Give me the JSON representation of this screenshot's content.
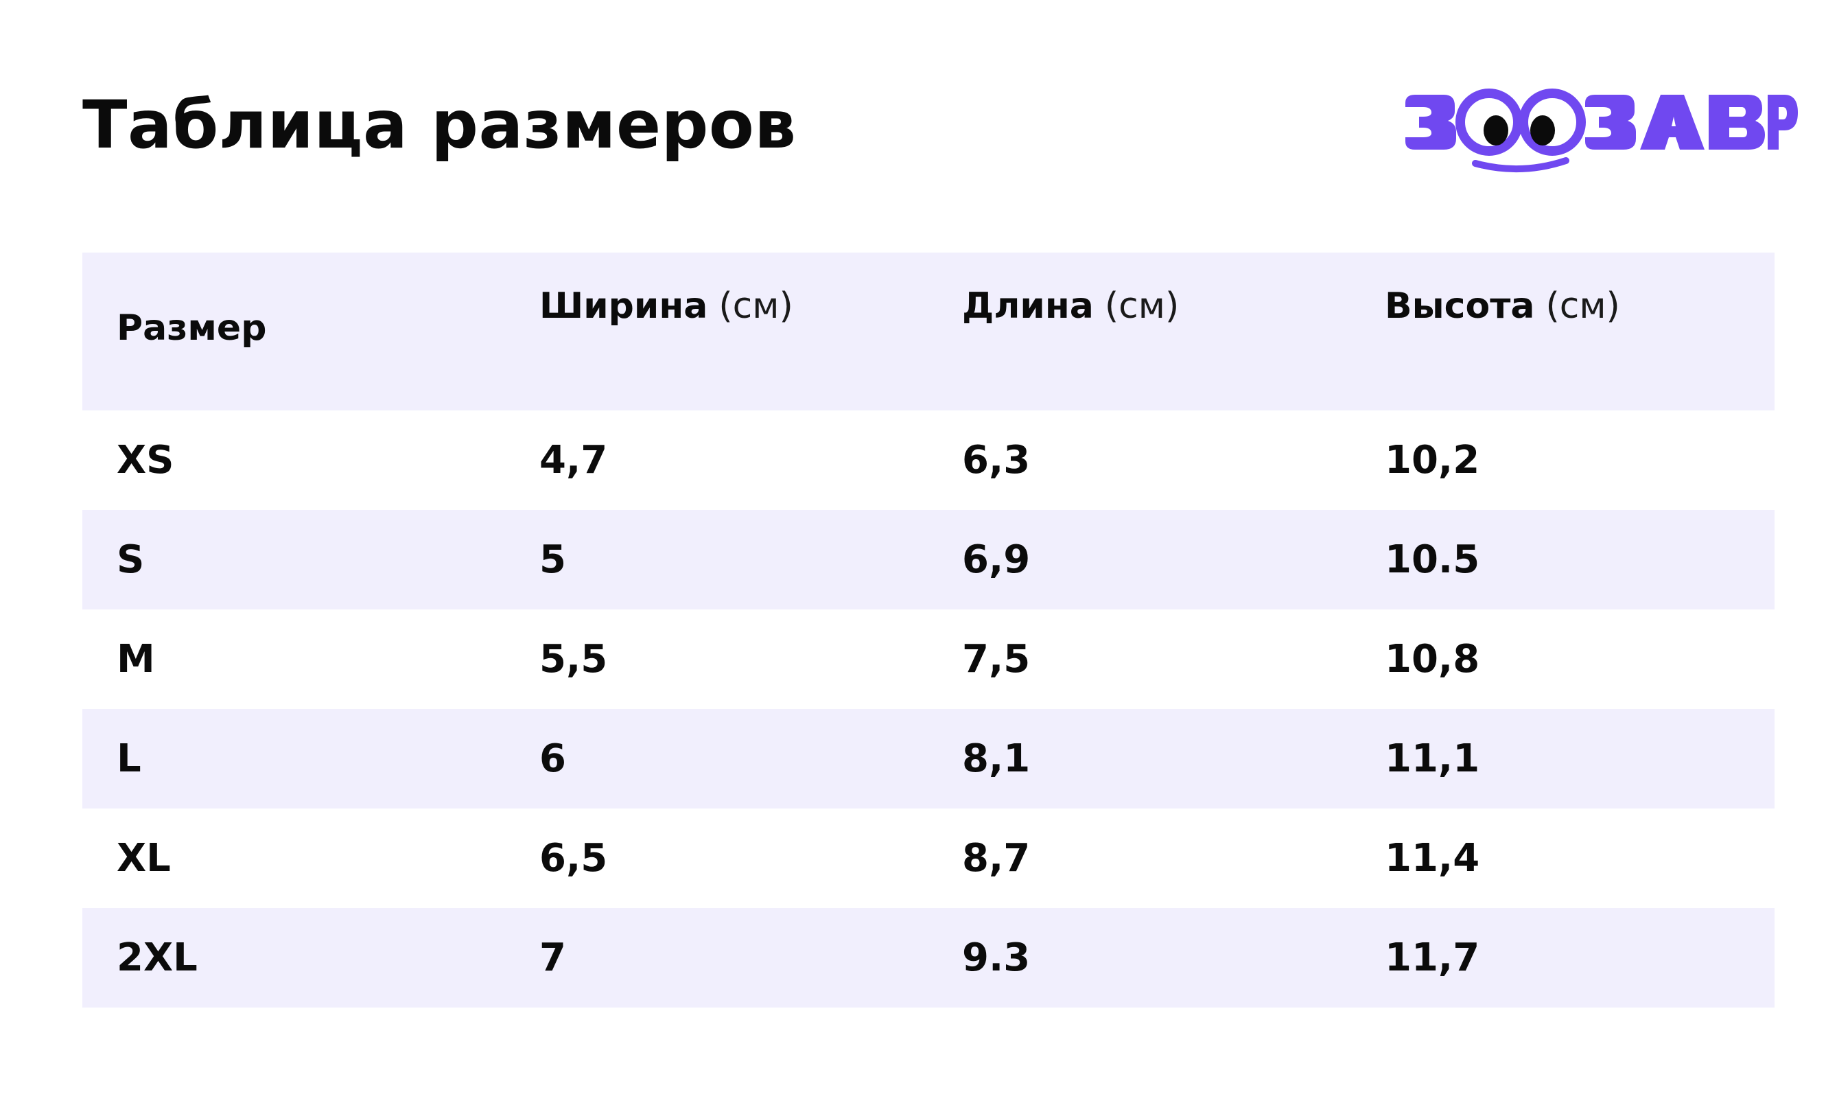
{
  "title": "Таблица размеров",
  "logo": {
    "text": "ЗООЗАВР",
    "color": "#7048f0"
  },
  "table": {
    "header_bg": "#f1effd",
    "columns": [
      {
        "label": "Размер",
        "unit": ""
      },
      {
        "label": "Ширина",
        "unit": "(см)"
      },
      {
        "label": "Длина",
        "unit": "(см)"
      },
      {
        "label": "Высота",
        "unit": "(см)"
      }
    ],
    "rows": [
      [
        "XS",
        "4,7",
        "6,3",
        "10,2"
      ],
      [
        "S",
        "5",
        "6,9",
        "10.5"
      ],
      [
        "M",
        "5,5",
        "7,5",
        "10,8"
      ],
      [
        "L",
        "6",
        "8,1",
        "11,1"
      ],
      [
        "XL",
        "6,5",
        "8,7",
        "11,4"
      ],
      [
        "2XL",
        "7",
        "9.3",
        "11,7"
      ]
    ]
  }
}
